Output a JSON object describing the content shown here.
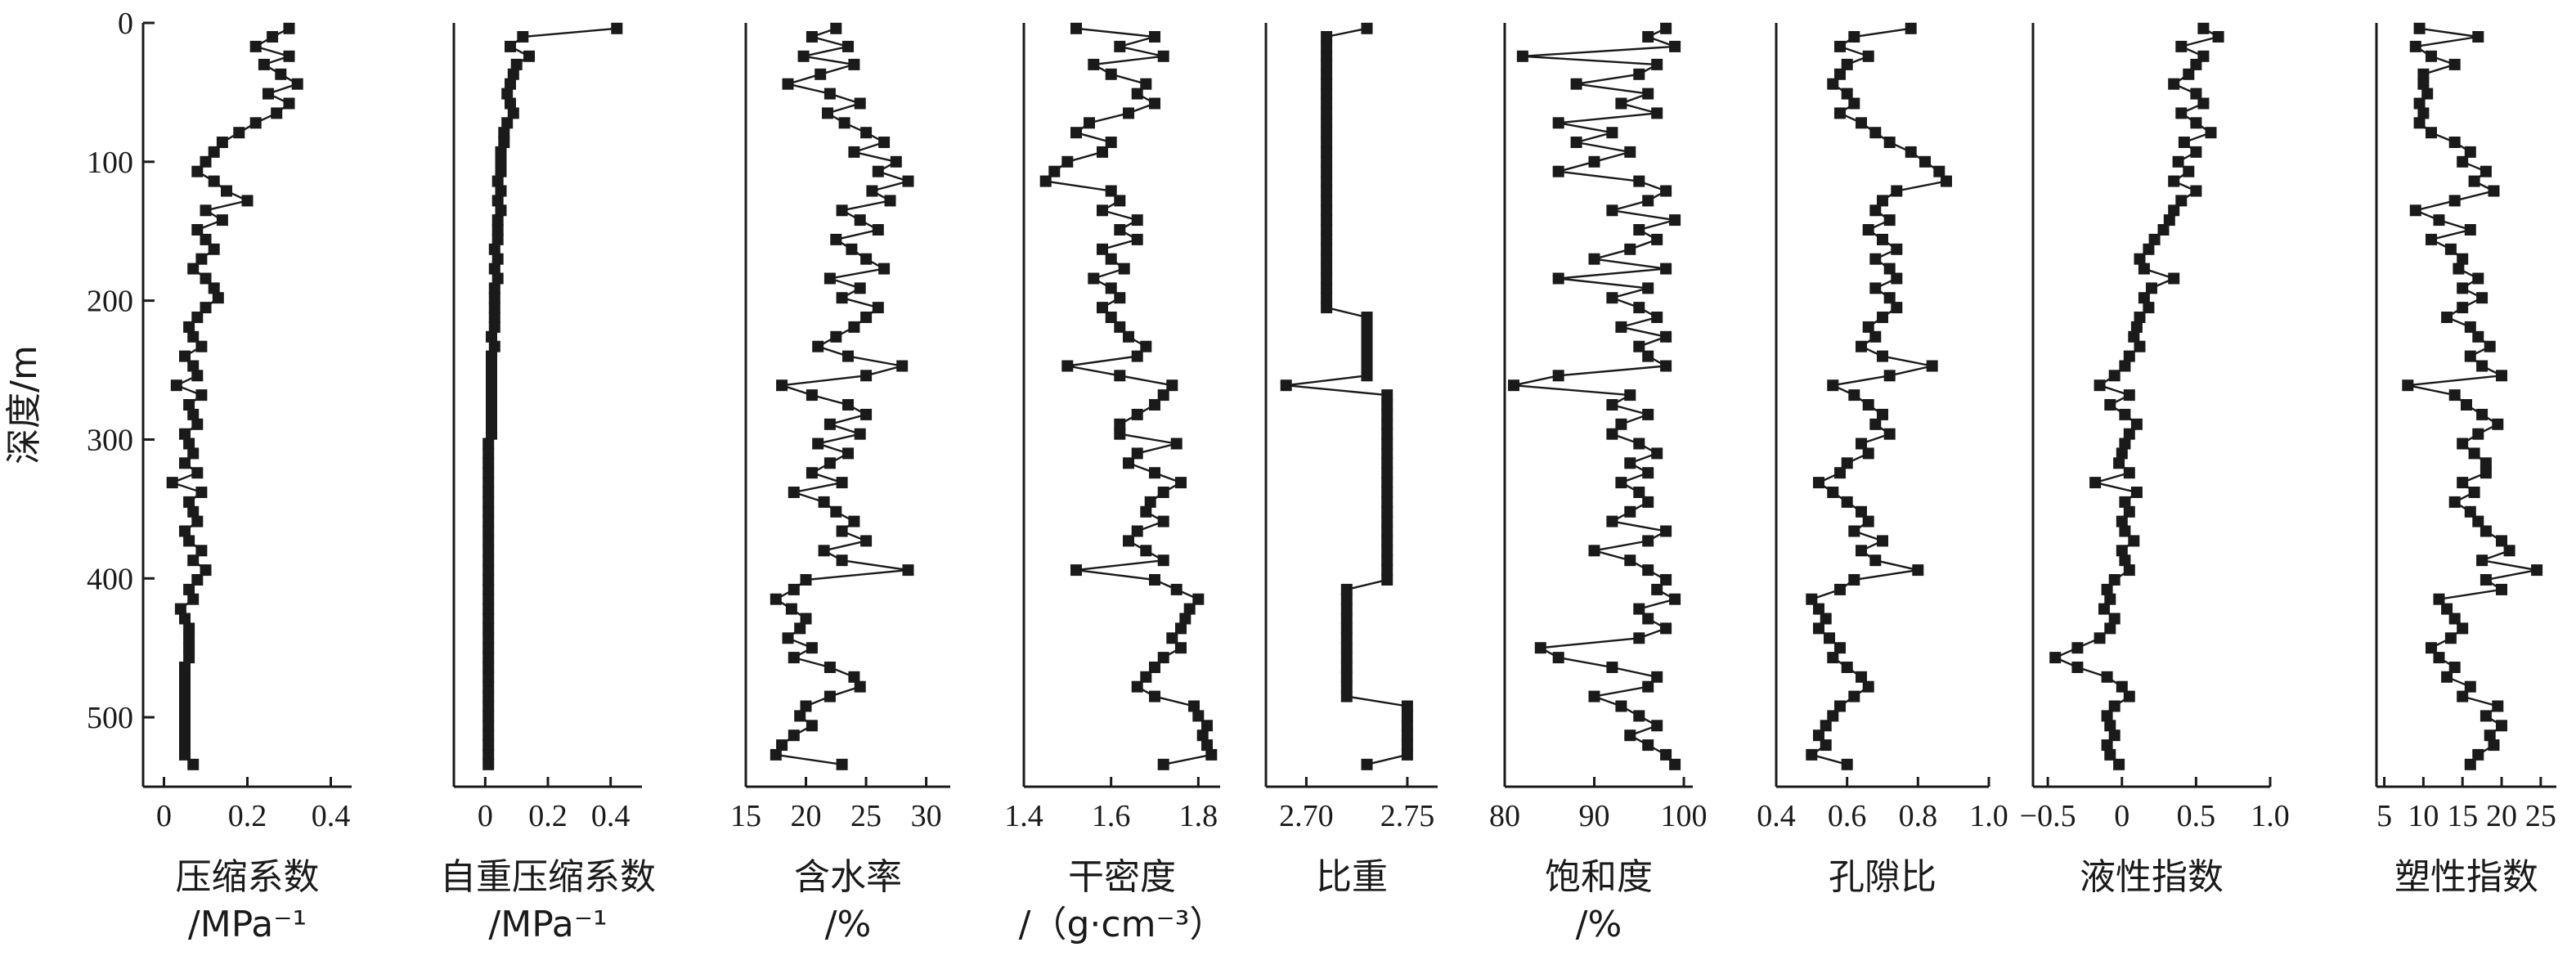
{
  "chart_data": {
    "type": "scatter",
    "title": "",
    "y": {
      "label": "深度/m",
      "range": [
        0,
        550
      ],
      "inverted": true,
      "ticks": [
        0,
        100,
        200,
        300,
        400,
        500
      ],
      "tick_labels": [
        "0",
        "100",
        "200",
        "300",
        "400",
        "500"
      ]
    },
    "depths": [
      4,
      10,
      17,
      24,
      30,
      37,
      44,
      51,
      58,
      65,
      72,
      79,
      86,
      93,
      100,
      107,
      114,
      121,
      128,
      135,
      142,
      149,
      156,
      163,
      170,
      177,
      184,
      191,
      198,
      205,
      212,
      219,
      226,
      233,
      240,
      247,
      254,
      261,
      268,
      275,
      282,
      289,
      296,
      303,
      310,
      317,
      324,
      331,
      338,
      345,
      352,
      359,
      366,
      373,
      380,
      387,
      394,
      401,
      408,
      415,
      422,
      429,
      436,
      443,
      450,
      457,
      464,
      471,
      478,
      485,
      492,
      499,
      506,
      513,
      520,
      527,
      534
    ],
    "panels": [
      {
        "label_line1": "压缩系数",
        "label_line2": "/MPa⁻¹",
        "xlim": [
          -0.05,
          0.45
        ],
        "ticks": [
          0,
          0.2,
          0.4
        ],
        "tick_labels": [
          "0",
          "0.2",
          "0.4"
        ],
        "values": [
          0.3,
          0.26,
          0.22,
          0.3,
          0.24,
          0.28,
          0.32,
          0.25,
          0.3,
          0.27,
          0.22,
          0.18,
          0.14,
          0.12,
          0.1,
          0.08,
          0.12,
          0.15,
          0.2,
          0.1,
          0.14,
          0.08,
          0.1,
          0.12,
          0.09,
          0.07,
          0.1,
          0.12,
          0.13,
          0.1,
          0.08,
          0.06,
          0.07,
          0.09,
          0.05,
          0.07,
          0.08,
          0.03,
          0.09,
          0.06,
          0.07,
          0.08,
          0.05,
          0.06,
          0.07,
          0.05,
          0.08,
          0.02,
          0.09,
          0.06,
          0.07,
          0.08,
          0.05,
          0.06,
          0.09,
          0.07,
          0.1,
          0.08,
          0.06,
          0.07,
          0.04,
          0.05,
          0.06,
          0.06,
          0.06,
          0.06,
          0.05,
          0.05,
          0.05,
          0.05,
          0.05,
          0.05,
          0.05,
          0.05,
          0.05,
          0.05,
          0.07
        ]
      },
      {
        "label_line1": "自重压缩系数",
        "label_line2": "/MPa⁻¹",
        "xlim": [
          -0.1,
          0.5
        ],
        "ticks": [
          0,
          0.2,
          0.4
        ],
        "tick_labels": [
          "0",
          "0.2",
          "0.4"
        ],
        "values": [
          0.42,
          0.12,
          0.08,
          0.14,
          0.1,
          0.09,
          0.08,
          0.07,
          0.08,
          0.09,
          0.07,
          0.06,
          0.06,
          0.05,
          0.05,
          0.05,
          0.04,
          0.05,
          0.04,
          0.05,
          0.04,
          0.04,
          0.04,
          0.03,
          0.04,
          0.03,
          0.04,
          0.03,
          0.03,
          0.03,
          0.03,
          0.03,
          0.02,
          0.03,
          0.02,
          0.02,
          0.02,
          0.02,
          0.02,
          0.02,
          0.02,
          0.02,
          0.02,
          0.01,
          0.01,
          0.01,
          0.01,
          0.01,
          0.01,
          0.01,
          0.01,
          0.01,
          0.01,
          0.01,
          0.01,
          0.01,
          0.01,
          0.01,
          0.01,
          0.01,
          0.01,
          0.01,
          0.01,
          0.01,
          0.01,
          0.01,
          0.01,
          0.01,
          0.01,
          0.01,
          0.01,
          0.01,
          0.01,
          0.01,
          0.01,
          0.01,
          0.01
        ]
      },
      {
        "label_line1": "含水率",
        "label_line2": "/%",
        "xlim": [
          15,
          32
        ],
        "ticks": [
          15,
          20,
          25,
          30
        ],
        "tick_labels": [
          "15",
          "20",
          "25",
          "30"
        ],
        "values": [
          22.5,
          20.5,
          23.5,
          19.8,
          24.0,
          21.2,
          18.5,
          22.0,
          24.5,
          21.8,
          23.2,
          25.0,
          26.5,
          24.0,
          27.5,
          26.0,
          28.5,
          25.5,
          27.0,
          23.0,
          24.5,
          26.0,
          22.5,
          23.8,
          25.0,
          26.5,
          22.0,
          24.5,
          23.0,
          26.0,
          25.0,
          24.0,
          22.5,
          21.0,
          23.5,
          28.0,
          25.0,
          18.0,
          20.5,
          23.5,
          25.0,
          22.0,
          24.5,
          21.0,
          23.5,
          22.0,
          20.5,
          23.0,
          19.0,
          21.5,
          22.5,
          24.0,
          23.0,
          25.0,
          21.5,
          23.0,
          28.5,
          20.0,
          19.0,
          17.5,
          18.8,
          20.0,
          19.5,
          18.5,
          20.5,
          19.0,
          22.0,
          24.0,
          24.5,
          22.0,
          20.0,
          19.5,
          20.5,
          19.0,
          18.0,
          17.5,
          23.0
        ]
      },
      {
        "label_line1": "干密度",
        "label_line2": "/（g·cm⁻³）",
        "xlim": [
          1.4,
          1.85
        ],
        "ticks": [
          1.4,
          1.6,
          1.8
        ],
        "tick_labels": [
          "1.4",
          "1.6",
          "1.8"
        ],
        "values": [
          1.52,
          1.7,
          1.62,
          1.72,
          1.56,
          1.6,
          1.68,
          1.66,
          1.7,
          1.64,
          1.55,
          1.52,
          1.6,
          1.58,
          1.5,
          1.47,
          1.45,
          1.6,
          1.62,
          1.58,
          1.66,
          1.62,
          1.66,
          1.58,
          1.6,
          1.63,
          1.56,
          1.6,
          1.62,
          1.58,
          1.6,
          1.62,
          1.64,
          1.68,
          1.66,
          1.5,
          1.62,
          1.74,
          1.72,
          1.7,
          1.66,
          1.62,
          1.62,
          1.75,
          1.66,
          1.64,
          1.7,
          1.76,
          1.72,
          1.69,
          1.68,
          1.72,
          1.66,
          1.64,
          1.68,
          1.72,
          1.52,
          1.7,
          1.75,
          1.8,
          1.78,
          1.77,
          1.76,
          1.74,
          1.76,
          1.72,
          1.7,
          1.68,
          1.66,
          1.7,
          1.79,
          1.8,
          1.82,
          1.81,
          1.82,
          1.83,
          1.72
        ]
      },
      {
        "label_line1": "比重",
        "label_line2": "",
        "xlim": [
          2.68,
          2.765
        ],
        "ticks": [
          2.7,
          2.75
        ],
        "tick_labels": [
          "2.70",
          "2.75"
        ],
        "values": [
          2.73,
          2.71,
          2.71,
          2.71,
          2.71,
          2.71,
          2.71,
          2.71,
          2.71,
          2.71,
          2.71,
          2.71,
          2.71,
          2.71,
          2.71,
          2.71,
          2.71,
          2.71,
          2.71,
          2.71,
          2.71,
          2.71,
          2.71,
          2.71,
          2.71,
          2.71,
          2.71,
          2.71,
          2.71,
          2.71,
          2.73,
          2.73,
          2.73,
          2.73,
          2.73,
          2.73,
          2.73,
          2.69,
          2.74,
          2.74,
          2.74,
          2.74,
          2.74,
          2.74,
          2.74,
          2.74,
          2.74,
          2.74,
          2.74,
          2.74,
          2.74,
          2.74,
          2.74,
          2.74,
          2.74,
          2.74,
          2.74,
          2.74,
          2.72,
          2.72,
          2.72,
          2.72,
          2.72,
          2.72,
          2.72,
          2.72,
          2.72,
          2.72,
          2.72,
          2.72,
          2.75,
          2.75,
          2.75,
          2.75,
          2.75,
          2.75,
          2.73
        ]
      },
      {
        "label_line1": "饱和度",
        "label_line2": "/%",
        "xlim": [
          80,
          101
        ],
        "ticks": [
          80,
          90,
          100
        ],
        "tick_labels": [
          "80",
          "90",
          "100"
        ],
        "values": [
          98,
          96,
          99,
          82,
          97,
          95,
          88,
          96,
          93,
          97,
          86,
          92,
          88,
          94,
          90,
          86,
          95,
          98,
          96,
          92,
          99,
          95,
          97,
          94,
          90,
          98,
          86,
          96,
          92,
          95,
          97,
          93,
          98,
          95,
          96,
          98,
          86,
          81,
          94,
          92,
          96,
          93,
          92,
          95,
          97,
          94,
          96,
          93,
          95,
          96,
          94,
          92,
          98,
          96,
          90,
          94,
          96,
          98,
          97,
          99,
          95,
          96,
          98,
          95,
          84,
          86,
          92,
          97,
          96,
          90,
          93,
          95,
          97,
          94,
          96,
          98,
          99
        ]
      },
      {
        "label_line1": "孔隙比",
        "label_line2": "",
        "xlim": [
          0.4,
          1.0
        ],
        "ticks": [
          0.4,
          0.6,
          0.8,
          1.0
        ],
        "tick_labels": [
          "0.4",
          "0.6",
          "0.8",
          "1.0"
        ],
        "values": [
          0.78,
          0.62,
          0.58,
          0.66,
          0.6,
          0.58,
          0.56,
          0.6,
          0.62,
          0.58,
          0.64,
          0.68,
          0.72,
          0.78,
          0.82,
          0.86,
          0.88,
          0.74,
          0.7,
          0.68,
          0.72,
          0.66,
          0.7,
          0.74,
          0.68,
          0.72,
          0.74,
          0.68,
          0.72,
          0.74,
          0.7,
          0.66,
          0.68,
          0.64,
          0.7,
          0.84,
          0.72,
          0.56,
          0.62,
          0.66,
          0.7,
          0.68,
          0.72,
          0.64,
          0.66,
          0.6,
          0.58,
          0.52,
          0.56,
          0.6,
          0.64,
          0.66,
          0.62,
          0.7,
          0.64,
          0.68,
          0.8,
          0.62,
          0.58,
          0.5,
          0.52,
          0.54,
          0.52,
          0.55,
          0.58,
          0.56,
          0.6,
          0.64,
          0.66,
          0.62,
          0.58,
          0.56,
          0.54,
          0.52,
          0.54,
          0.5,
          0.6
        ]
      },
      {
        "label_line1": "液性指数",
        "label_line2": "",
        "xlim": [
          -0.6,
          1.0
        ],
        "ticks": [
          -0.5,
          0,
          0.5,
          1.0
        ],
        "tick_labels": [
          "−0.5",
          "0",
          "0.5",
          "1.0"
        ],
        "values": [
          0.55,
          0.65,
          0.4,
          0.55,
          0.5,
          0.45,
          0.35,
          0.5,
          0.55,
          0.4,
          0.5,
          0.6,
          0.42,
          0.5,
          0.38,
          0.45,
          0.35,
          0.5,
          0.4,
          0.35,
          0.32,
          0.28,
          0.22,
          0.18,
          0.12,
          0.15,
          0.35,
          0.2,
          0.15,
          0.18,
          0.12,
          0.1,
          0.08,
          0.12,
          0.05,
          0.02,
          -0.05,
          -0.15,
          0.05,
          -0.08,
          0.02,
          0.1,
          0.05,
          0.02,
          0.0,
          -0.02,
          0.05,
          -0.18,
          0.1,
          0.02,
          0.05,
          0.0,
          0.02,
          0.08,
          0.0,
          0.02,
          0.05,
          -0.05,
          -0.1,
          -0.08,
          -0.12,
          -0.05,
          -0.08,
          -0.15,
          -0.3,
          -0.45,
          -0.3,
          -0.1,
          0.0,
          0.05,
          -0.05,
          -0.1,
          -0.08,
          -0.05,
          -0.1,
          -0.08,
          -0.02
        ]
      },
      {
        "label_line1": "塑性指数",
        "label_line2": "",
        "xlim": [
          4,
          27
        ],
        "ticks": [
          5,
          10,
          15,
          20,
          25
        ],
        "tick_labels": [
          "5",
          "10",
          "15",
          "20",
          "25"
        ],
        "values": [
          9.5,
          17.0,
          9.0,
          11.0,
          14.0,
          10.0,
          10.0,
          10.5,
          9.5,
          10.0,
          9.5,
          11.0,
          14.0,
          16.0,
          15.0,
          18.0,
          16.5,
          19.0,
          14.0,
          9.0,
          12.0,
          16.0,
          11.0,
          13.5,
          15.0,
          14.5,
          17.0,
          15.0,
          17.5,
          15.0,
          13.0,
          16.0,
          17.0,
          18.5,
          16.0,
          17.5,
          20.0,
          8.0,
          14.0,
          15.5,
          17.5,
          19.5,
          17.0,
          15.0,
          16.5,
          18.0,
          18.0,
          15.0,
          16.5,
          14.0,
          16.0,
          17.0,
          18.0,
          20.0,
          21.0,
          17.5,
          24.5,
          18.0,
          20.0,
          12.0,
          13.0,
          14.0,
          15.0,
          13.5,
          11.0,
          12.0,
          14.0,
          13.0,
          16.0,
          15.0,
          19.5,
          18.0,
          20.0,
          18.5,
          19.0,
          17.0,
          16.0
        ]
      }
    ]
  }
}
